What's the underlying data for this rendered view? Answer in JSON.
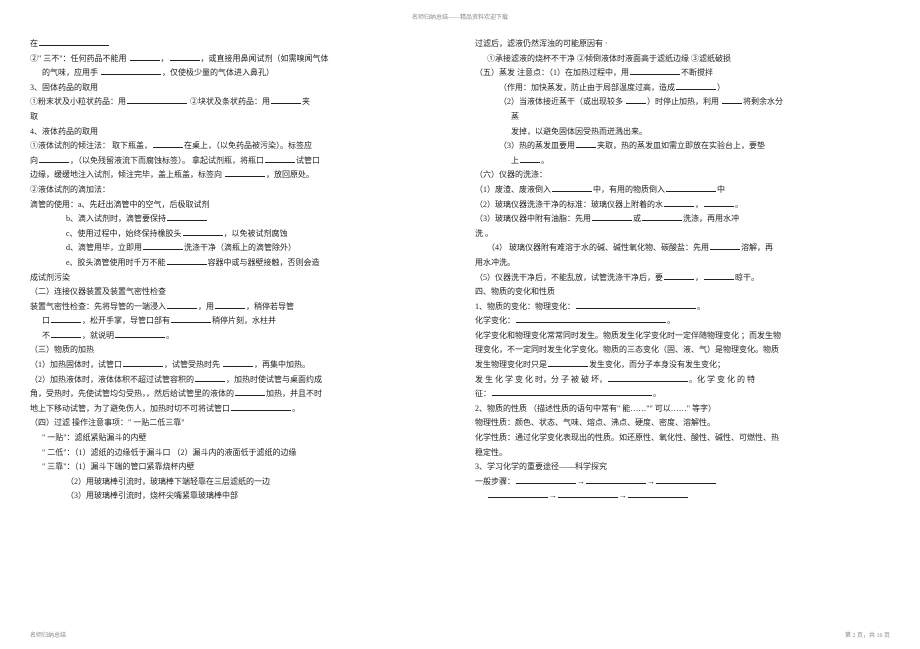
{
  "header": "名师归纳总结——精品资料欢迎下载",
  "footer_left": "名师归纳总结",
  "footer_right": "第 2 页，共 16 页",
  "left_lines": [
    {
      "pre": "在",
      "blank": 70,
      "post": ""
    },
    {
      "pre": "②\" 三不\"：任何药品不能用 ",
      "blank": 30,
      "post": "，",
      "blank2": 30,
      "post2": "，或直接用鼻闻试剂（如需嗅闻气体"
    },
    {
      "pre": "的气味，应用手 ",
      "blank": 60,
      "post": "，仅使极少量的气体进入鼻孔）",
      "cls": "indent1"
    },
    {
      "pre": "3、固体药品的取用",
      "blank": 0,
      "post": ""
    },
    {
      "pre": "①粉末状及小粒状药品：用",
      "blank": 60,
      "post": " ②块状及条状药品：用",
      "blank2": 30,
      "post2": "夹"
    },
    {
      "pre": "取",
      "blank": 0,
      "post": ""
    },
    {
      "pre": "4、液体药品的取用",
      "blank": 0,
      "post": ""
    },
    {
      "pre": "①液体试剂的倾注法： 取下瓶盖，",
      "blank": 30,
      "post": "在桌上，（以免药品被污染）。标签应"
    },
    {
      "pre": "向",
      "blank": 30,
      "post": "，（以免残留液流下而腐蚀标签）。 拿起试剂瓶，将瓶口",
      "blank2": 30,
      "post2": "试管口"
    },
    {
      "pre": "边缘，缓缓地注入试剂，倾注完毕，盖上瓶盖，标签向 ",
      "blank": 40,
      "post": "，放回原处。"
    },
    {
      "pre": "②液体试剂的滴加法：",
      "blank": 0,
      "post": ""
    },
    {
      "pre": "滴管的使用：a、先赶出滴管中的空气，后极取试剂",
      "blank": 0,
      "post": ""
    },
    {
      "pre": "b、滴入试剂时，滴管要保持",
      "blank": 40,
      "post": "",
      "cls": "indent3"
    },
    {
      "pre": "c、使用过程中，始终保持橡胶头",
      "blank": 40,
      "post": "，以免被试剂腐蚀",
      "cls": "indent3"
    },
    {
      "pre": "d、滴管用毕，立即用",
      "blank": 40,
      "post": "洗涤干净（滴瓶上的滴管除外）",
      "cls": "indent3"
    },
    {
      "pre": "e、胶头滴管使用时千万不能",
      "blank": 40,
      "post": "容器中或与器壁接触，否则会造",
      "cls": "indent3"
    },
    {
      "pre": "成试剂污染",
      "blank": 0,
      "post": ""
    },
    {
      "pre": "（二）连接仪器装置及装置气密性检查",
      "blank": 0,
      "post": ""
    },
    {
      "pre": "装置气密性检查：先将导管的一端浸入",
      "blank": 30,
      "post": "，用",
      "blank2": 30,
      "post2": "，稍停若导管"
    },
    {
      "pre": "口",
      "blank": 30,
      "post": "，松开手掌，导管口部有",
      "blank2": 40,
      "post2": "稍停片刻，水柱并",
      "cls": "indent1"
    },
    {
      "pre": "不",
      "blank": 30,
      "post": "，就说明",
      "blank2": 50,
      "post2": "。",
      "cls": "indent1"
    },
    {
      "pre": "（三）物质的加热",
      "blank": 0,
      "post": ""
    },
    {
      "pre": "（1）加热固体时，试管口",
      "blank": 40,
      "post": "，试管受热时先 ",
      "blank2": 30,
      "post2": "，再集中加热。"
    },
    {
      "pre": "（2）加热液体时，液体体积不超过试管容积的",
      "blank": 30,
      "post": "，加热时使试管与桌面约成"
    },
    {
      "pre": "角，受热时，先使试管均匀受热，，然后给试管里的液体的",
      "blank": 30,
      "post": "加热，并且不时"
    },
    {
      "pre": "地上下移动试管，为了避免伤人，加热时切不可将试管口",
      "blank": 60,
      "post": "。"
    },
    {
      "pre": "（四）过滤 操作注意事项：\" 一贴二低三靠\"",
      "blank": 0,
      "post": ""
    },
    {
      "pre": "\" 一贴\"：滤纸紧贴漏斗的内壁",
      "blank": 0,
      "post": "",
      "cls": "indent1"
    },
    {
      "pre": "\" 二低\"：（1）滤纸的边缘低于漏斗口 （2）漏斗内的液面低于滤纸的边缘",
      "blank": 0,
      "post": "",
      "cls": "indent1"
    },
    {
      "pre": "\" 三靠\"：（1）漏斗下端的管口紧靠烧杯内壁",
      "blank": 0,
      "post": "",
      "cls": "indent1"
    },
    {
      "pre": "（2）用玻璃棒引流时，玻璃棒下端轻靠在三层滤纸的一边",
      "blank": 0,
      "post": "",
      "cls": "indent3"
    },
    {
      "pre": "（3）用玻璃棒引流时，烧杯尖嘴紧靠玻璃棒中部",
      "blank": 0,
      "post": "",
      "cls": "indent3"
    }
  ],
  "right_lines": [
    {
      "pre": "过滤后，滤液仍然浑浊的可能原因有 ·",
      "blank": 0,
      "post": ""
    },
    {
      "pre": "①承接滤液的烧杯不干净 ②倾倒液体时液面高于滤纸边缘 ③滤纸破损",
      "blank": 0,
      "post": "",
      "cls": "indent1"
    },
    {
      "pre": "（五）蒸发 注意点：（1）在加热过程中，用",
      "blank": 50,
      "post": "不断搅拌"
    },
    {
      "pre": "（作用：加快蒸发，防止由于局部温度过高，造成",
      "blank": 40,
      "post": "）",
      "cls": "indent2"
    },
    {
      "pre": "（2）当液体接近蒸干（或出现较多 ",
      "blank": 20,
      "post": "）时停止加热，利用 ",
      "blank2": 20,
      "post2": "将剩余水分",
      "cls": "indent2"
    },
    {
      "pre": "蒸",
      "blank": 0,
      "post": "",
      "cls": "indent3"
    },
    {
      "pre": "发掉，以避免固体因受热而迸溅出来。",
      "blank": 0,
      "post": "",
      "cls": "indent3"
    },
    {
      "pre": "（3）热的蒸发皿要用",
      "blank": 20,
      "post": "夹取，热的蒸发皿如需立即放在实验台上，要垫",
      "cls": "indent2"
    },
    {
      "pre": "上",
      "blank": 20,
      "post": "。",
      "cls": "indent3"
    },
    {
      "pre": "（六）仪器的洗涤：",
      "blank": 0,
      "post": ""
    },
    {
      "pre": "（1）废渣、废液倒入",
      "blank": 40,
      "post": "中，有用的物质倒入",
      "blank2": 50,
      "post2": "中"
    },
    {
      "pre": "（2）玻璃仪器洗涤干净的标准：玻璃仪器上附着的水",
      "blank": 30,
      "post": "，",
      "blank2": 30,
      "post2": "。"
    },
    {
      "pre": "（3）玻璃仪器中附有油脂：先用",
      "blank": 40,
      "post": "或",
      "blank2": 40,
      "post2": "洗涤，再用水冲"
    },
    {
      "pre": "洗 。",
      "blank": 0,
      "post": ""
    },
    {
      "pre": "（4） 玻璃仪器附有难溶于水的碱、碱性氧化物、碳酸盐：先用",
      "blank": 30,
      "post": "溶解，再",
      "cls": "indent1"
    },
    {
      "pre": "用水冲洗。",
      "blank": 0,
      "post": ""
    },
    {
      "pre": "（5）仪器洗干净后，不能乱放，试管洗涤干净后，要",
      "blank": 30,
      "post": "，",
      "blank2": 30,
      "post2": "晾干。"
    },
    {
      "pre": "四、物质的变化和性质",
      "blank": 0,
      "post": ""
    },
    {
      "pre": "1、物质的变化：物理变化：",
      "blank": 120,
      "post": "。"
    },
    {
      "pre": "化学变化：",
      "blank": 150,
      "post": "。"
    },
    {
      "pre": "化学变化和物理变化常常同时发生。物质发生化学变化时一定伴随物理变化 ；而发生物",
      "blank": 0,
      "post": ""
    },
    {
      "pre": "理变化，不一定同时发生化学变化。物质的三态变化（固、液、气）是物理变化。物质",
      "blank": 0,
      "post": ""
    },
    {
      "pre": "发生物理变化时只是",
      "blank": 40,
      "post": "发生变化，而分子本身没有发生变化；"
    },
    {
      "pre": "发 生 化 学 变 化 时，分 子 被 破 坏，",
      "blank": 80,
      "post": "。化 学 变 化 的 特"
    },
    {
      "pre": "征：",
      "blank": 160,
      "post": "。"
    },
    {
      "pre": "2、物质的性质 （描述性质的语句中常有\" 能……\"\" 可以……\" 等字）",
      "blank": 0,
      "post": ""
    },
    {
      "pre": "物理性质：颜色、状态、气味、熔点、沸点、硬度、密度、溶解性。",
      "blank": 0,
      "post": ""
    },
    {
      "pre": "化学性质：通过化学变化表现出的性质。如还原性、氧化性、酸性、碱性、可燃性、热",
      "blank": 0,
      "post": ""
    },
    {
      "pre": "稳定性。",
      "blank": 0,
      "post": ""
    },
    {
      "pre": "3、学习化学的重要途径——科学探究",
      "blank": 0,
      "post": ""
    },
    {
      "pre": "一般步骤：",
      "blank": 60,
      "post": "→",
      "blank2": 60,
      "post2": "→",
      "blank3": 60,
      "post3": ""
    },
    {
      "pre": "",
      "blank": 60,
      "post": "→",
      "blank2": 60,
      "post2": "→",
      "blank3": 60,
      "post3": "",
      "cls": "indent1"
    }
  ]
}
